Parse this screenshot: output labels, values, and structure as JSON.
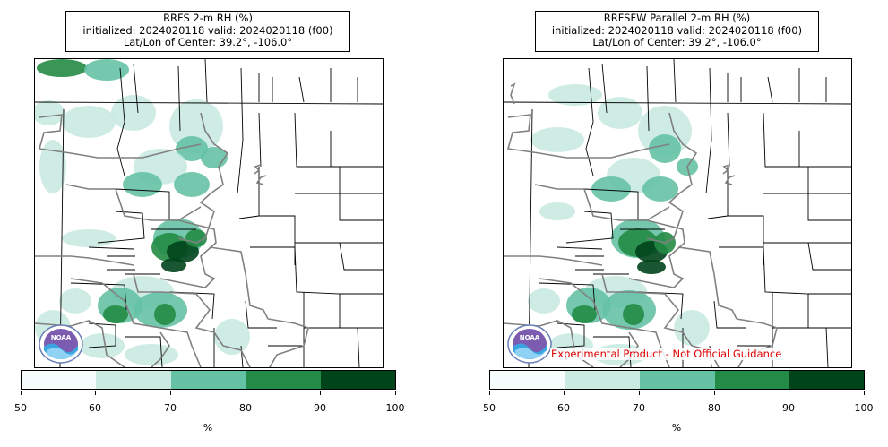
{
  "panels": [
    {
      "title_line1": "RRFS 2-m RH (%)",
      "title_line2": "initialized: 2024020118 valid: 2024020118 (f00)",
      "title_line3": "Lat/Lon of Center: 39.2°, -106.0°",
      "logo_text": "NOAA",
      "disclaimer": ""
    },
    {
      "title_line1": "RRFSFW Parallel 2-m RH (%)",
      "title_line2": "initialized: 2024020118 valid: 2024020118 (f00)",
      "title_line3": "Lat/Lon of Center: 39.2°, -106.0°",
      "logo_text": "NOAA",
      "disclaimer": "Experimental Product - Not Official Guidance"
    }
  ],
  "colorbar": {
    "unit": "%",
    "ticks": [
      "50",
      "60",
      "70",
      "80",
      "90",
      "100"
    ],
    "colors": [
      "#f7fcfd",
      "#c9eae1",
      "#66c2a4",
      "#238b45",
      "#00441b"
    ]
  },
  "colors": {
    "county_lines": "#000000",
    "state_lines": "#808080"
  }
}
